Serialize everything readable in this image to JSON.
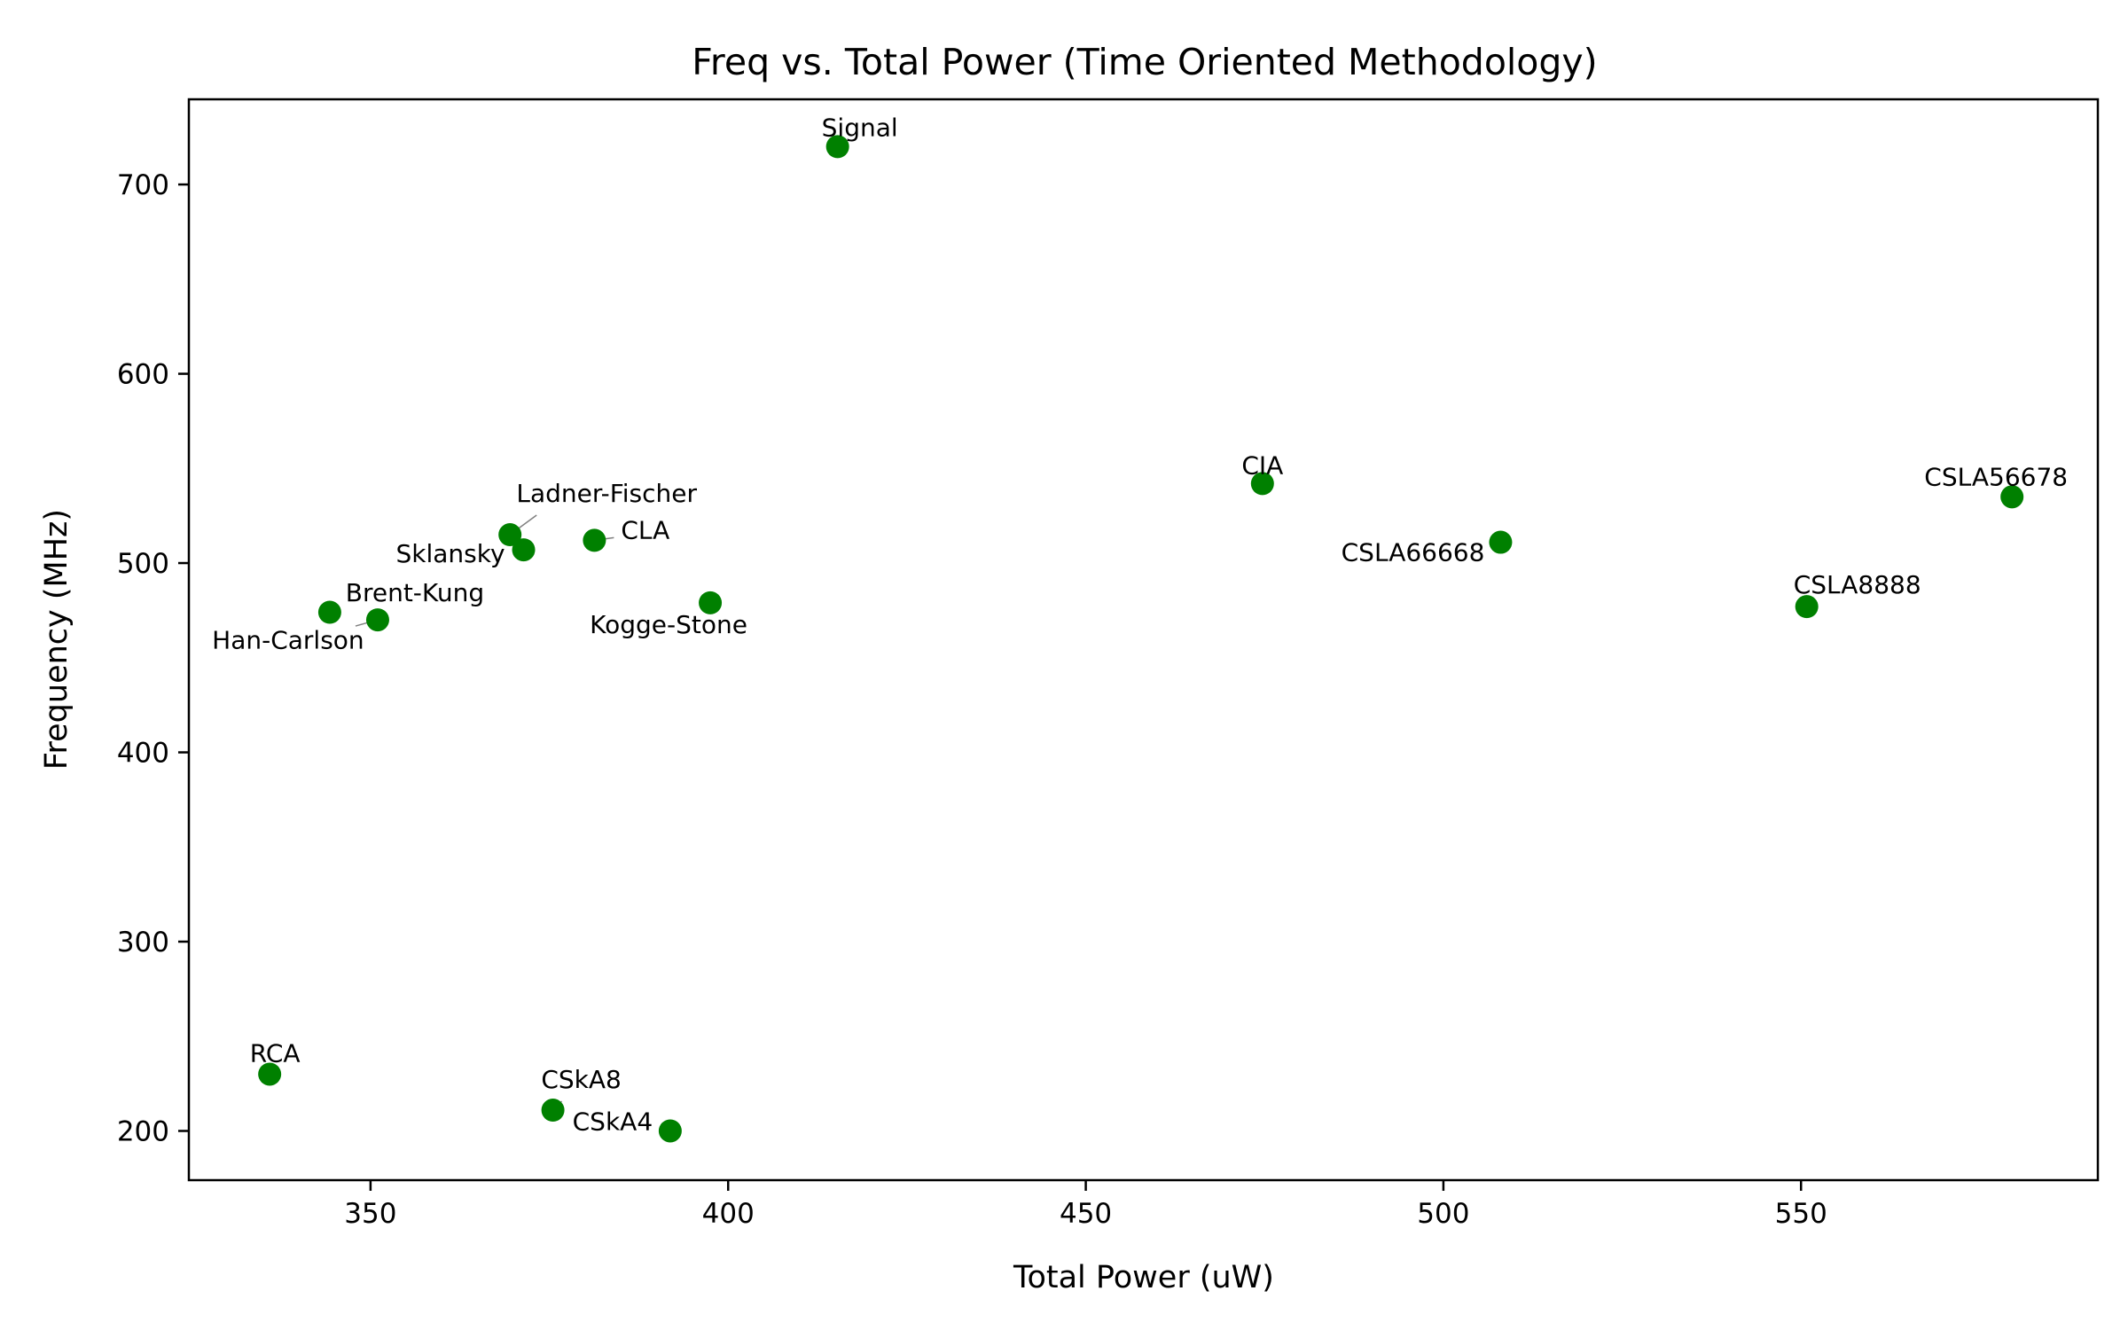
{
  "chart_data": {
    "type": "scatter",
    "title": "Freq vs. Total Power (Time Oriented Methodology)",
    "xlabel": "Total Power (uW)",
    "ylabel": "Frequency (MHz)",
    "xlim": [
      324.6,
      591.5
    ],
    "ylim": [
      174.0,
      745.0
    ],
    "xticks": [
      350,
      400,
      450,
      500,
      550
    ],
    "yticks": [
      200,
      300,
      400,
      500,
      600,
      700
    ],
    "grid": false,
    "legend": "none",
    "point_color": "#008000",
    "points": [
      {
        "label": "Signal",
        "x": 415.3,
        "y": 720
      },
      {
        "label": "CIA",
        "x": 474.7,
        "y": 542
      },
      {
        "label": "CSLA56678",
        "x": 579.5,
        "y": 535
      },
      {
        "label": "Ladner-Fischer",
        "x": 369.5,
        "y": 515
      },
      {
        "label": "CLA",
        "x": 381.3,
        "y": 512
      },
      {
        "label": "CSLA66668",
        "x": 508.0,
        "y": 511
      },
      {
        "label": "Sklansky",
        "x": 371.4,
        "y": 507
      },
      {
        "label": "Kogge-Stone",
        "x": 397.5,
        "y": 479
      },
      {
        "label": "CSLA8888",
        "x": 550.8,
        "y": 477
      },
      {
        "label": "Han-Carlson",
        "x": 344.3,
        "y": 474
      },
      {
        "label": "Brent-Kung",
        "x": 351.0,
        "y": 470
      },
      {
        "label": "RCA",
        "x": 335.9,
        "y": 230
      },
      {
        "label": "CSkA8",
        "x": 375.5,
        "y": 211
      },
      {
        "label": "CSkA4",
        "x": 391.9,
        "y": 200
      }
    ]
  }
}
